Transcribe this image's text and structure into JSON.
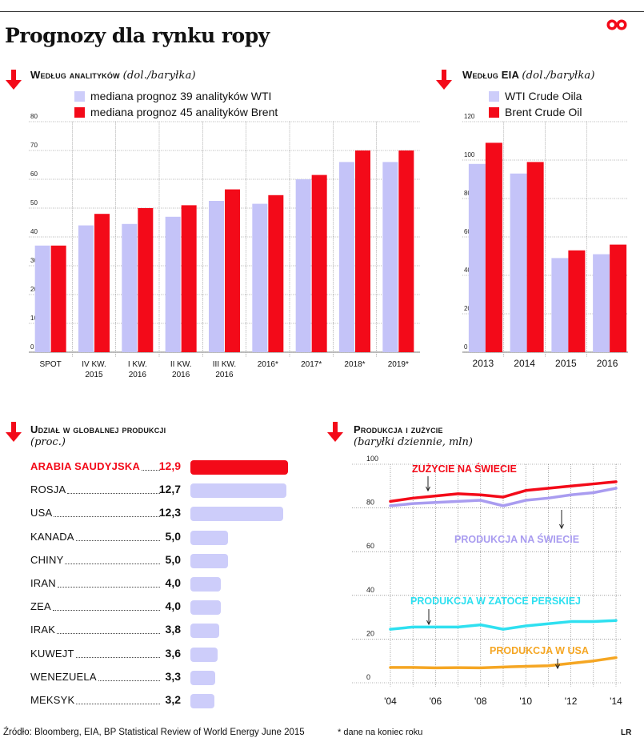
{
  "title": "Prognozy dla rynku ropy",
  "colors": {
    "red": "#f30a19",
    "lavender": "#cdcdfa",
    "lavender_bar": "#c4c3f8",
    "cyan": "#2fe0f0",
    "orange": "#f5a623",
    "purple": "#a99cf0",
    "grid": "#666666"
  },
  "sections": {
    "analysts": {
      "heading": "Według analityków",
      "unit": "(dol./baryłka)",
      "legend": [
        "mediana prognoz 39 analityków WTI",
        "mediana prognoz 45 analityków Brent"
      ]
    },
    "eia": {
      "heading": "Według EIA",
      "unit": "(dol./baryłka)",
      "legend": [
        "WTI Crude Oila",
        "Brent Crude Oil"
      ]
    },
    "share": {
      "heading": "Udział w globalnej produkcji",
      "unit": "(proc.)"
    },
    "production": {
      "heading": "Produkcja i zużycie",
      "unit": "(baryłki dziennie, mln)"
    }
  },
  "chart_data": [
    {
      "type": "bar",
      "title": "Według analityków (dol./baryłka)",
      "categories": [
        [
          "SPOT"
        ],
        [
          "IV KW.",
          "2015"
        ],
        [
          "I KW.",
          "2016"
        ],
        [
          "II KW.",
          "2016"
        ],
        [
          "III KW.",
          "2016"
        ],
        [
          "2016*"
        ],
        [
          "2017*"
        ],
        [
          "2018*"
        ],
        [
          "2019*"
        ]
      ],
      "series": [
        {
          "name": "mediana prognoz 39 analityków WTI",
          "values": [
            37,
            44,
            44.5,
            47,
            52.5,
            51.5,
            60,
            66,
            66
          ]
        },
        {
          "name": "mediana prognoz 45 analityków Brent",
          "values": [
            37,
            48,
            50,
            51,
            56.5,
            54.5,
            61.5,
            70,
            70
          ]
        }
      ],
      "yticks": [
        "0",
        "10",
        "20",
        "30",
        "40",
        "50",
        "60",
        "70",
        "80"
      ],
      "ylim": [
        0,
        80
      ]
    },
    {
      "type": "bar",
      "title": "Według EIA (dol./baryłka)",
      "categories": [
        [
          "2013"
        ],
        [
          "2014"
        ],
        [
          "2015"
        ],
        [
          "2016"
        ]
      ],
      "series": [
        {
          "name": "WTI Crude Oila",
          "values": [
            98,
            93,
            49,
            51
          ]
        },
        {
          "name": "Brent Crude Oil",
          "values": [
            109,
            99,
            53,
            56
          ]
        }
      ],
      "yticks": [
        "0",
        "20",
        "40",
        "60",
        "80",
        "100",
        "120"
      ],
      "ylim": [
        0,
        120
      ]
    },
    {
      "type": "bar",
      "title": "Udział w globalnej produkcji (proc.)",
      "orientation": "horizontal",
      "rows": [
        {
          "name": "ARABIA SAUDYJSKA",
          "label": "12,9",
          "value": 12.9,
          "highlight": true
        },
        {
          "name": "ROSJA",
          "label": "12,7",
          "value": 12.7
        },
        {
          "name": "USA",
          "label": "12,3",
          "value": 12.3
        },
        {
          "name": "KANADA",
          "label": "5,0",
          "value": 5.0
        },
        {
          "name": "CHINY",
          "label": "5,0",
          "value": 5.0
        },
        {
          "name": "IRAN",
          "label": "4,0",
          "value": 4.0
        },
        {
          "name": "ZEA",
          "label": "4,0",
          "value": 4.0
        },
        {
          "name": "IRAK",
          "label": "3,8",
          "value": 3.8
        },
        {
          "name": "KUWEJT",
          "label": "3,6",
          "value": 3.6
        },
        {
          "name": "WENEZUELA",
          "label": "3,3",
          "value": 3.3
        },
        {
          "name": "MEKSYK",
          "label": "3,2",
          "value": 3.2
        }
      ]
    },
    {
      "type": "line",
      "title": "Produkcja i zużycie (baryłki dziennie, mln)",
      "x": [
        2004,
        2005,
        2006,
        2007,
        2008,
        2009,
        2010,
        2011,
        2012,
        2013,
        2014
      ],
      "xticks": [
        {
          "v": 2004,
          "label": "'04"
        },
        {
          "v": 2006,
          "label": "'06"
        },
        {
          "v": 2008,
          "label": "'08"
        },
        {
          "v": 2010,
          "label": "'10"
        },
        {
          "v": 2012,
          "label": "'12"
        },
        {
          "v": 2014,
          "label": "'14"
        }
      ],
      "yticks": [
        "0",
        "20",
        "40",
        "60",
        "80",
        "100"
      ],
      "ylim": [
        0,
        100
      ],
      "series": [
        {
          "name": "ZUŻYCIE NA ŚWIECIE",
          "color": "#f30a19",
          "values": [
            83,
            84.5,
            85.5,
            86.5,
            86,
            85,
            88,
            89,
            90,
            91,
            92
          ]
        },
        {
          "name": "PRODUKCJA NA ŚWIECIE",
          "color": "#a99cf0",
          "values": [
            81,
            82,
            82.5,
            83,
            83.5,
            81,
            83.5,
            84.5,
            86,
            87,
            89
          ]
        },
        {
          "name": "PRODUKCJA W ZATOCE PERSKIEJ",
          "color": "#2fe0f0",
          "values": [
            24.5,
            25.5,
            25.5,
            25.5,
            26.5,
            24.5,
            26,
            27,
            28,
            28,
            28.5
          ]
        },
        {
          "name": "PRODUKCJA W USA",
          "color": "#f5a623",
          "values": [
            7,
            7,
            6.8,
            6.9,
            6.8,
            7.2,
            7.5,
            7.8,
            8.9,
            10,
            11.5
          ]
        }
      ]
    }
  ],
  "footer": {
    "source": "Źródło: Bloomberg, EIA, BP Statistical Review of World Energy June 2015",
    "note": "* dane na koniec roku",
    "author": "LR"
  }
}
